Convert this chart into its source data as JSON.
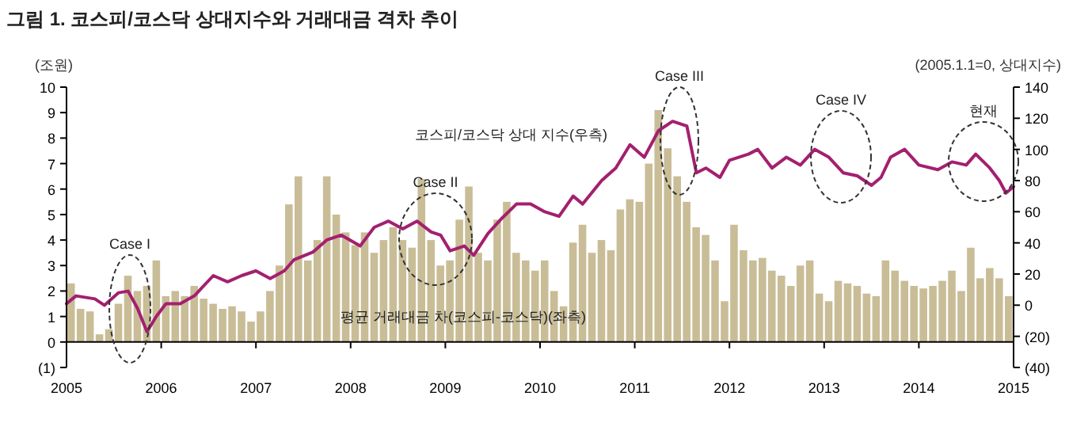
{
  "chart_data": {
    "type": "bar",
    "title": "그림 1. 코스피/코스닥 상대지수와 거래대금 격차 추이",
    "ylabel": "(조원)",
    "y2label": "(2005.1.1=0, 상대지수)",
    "xlim": [
      2005,
      2015
    ],
    "xticks": [
      2005,
      2006,
      2007,
      2008,
      2009,
      2010,
      2011,
      2012,
      2013,
      2014,
      2015
    ],
    "ylim": [
      -1,
      10
    ],
    "yticks": [
      {
        "value": -1,
        "label": "(1)"
      },
      0,
      1,
      2,
      3,
      4,
      5,
      6,
      7,
      8,
      9,
      10
    ],
    "y2lim": [
      -40,
      140
    ],
    "y2ticks": [
      {
        "value": -40,
        "label": "(40)"
      },
      {
        "value": -20,
        "label": "(20)"
      },
      0,
      20,
      40,
      60,
      80,
      100,
      120,
      140
    ],
    "series": [
      {
        "name": "평균 거래대금 차(코스피-코스닥)(좌측)",
        "color": "#c9bd97",
        "x": [
          2005.0,
          2005.1,
          2005.2,
          2005.3,
          2005.4,
          2005.5,
          2005.6,
          2005.7,
          2005.8,
          2005.9,
          2006.0,
          2006.1,
          2006.2,
          2006.3,
          2006.4,
          2006.5,
          2006.6,
          2006.7,
          2006.8,
          2006.9,
          2007.0,
          2007.1,
          2007.2,
          2007.3,
          2007.4,
          2007.5,
          2007.6,
          2007.7,
          2007.8,
          2007.9,
          2008.0,
          2008.1,
          2008.2,
          2008.3,
          2008.4,
          2008.5,
          2008.6,
          2008.7,
          2008.8,
          2008.9,
          2009.0,
          2009.1,
          2009.2,
          2009.3,
          2009.4,
          2009.5,
          2009.6,
          2009.7,
          2009.8,
          2009.9,
          2010.0,
          2010.1,
          2010.2,
          2010.3,
          2010.4,
          2010.5,
          2010.6,
          2010.7,
          2010.8,
          2010.9,
          2011.0,
          2011.1,
          2011.2,
          2011.3,
          2011.4,
          2011.5,
          2011.6,
          2011.7,
          2011.8,
          2011.9,
          2012.0,
          2012.1,
          2012.2,
          2012.3,
          2012.4,
          2012.5,
          2012.6,
          2012.7,
          2012.8,
          2012.9,
          2013.0,
          2013.1,
          2013.2,
          2013.3,
          2013.4,
          2013.5,
          2013.6,
          2013.7,
          2013.8,
          2013.9,
          2014.0,
          2014.1,
          2014.2,
          2014.3,
          2014.4,
          2014.5,
          2014.6,
          2014.7,
          2014.8,
          2014.9
        ],
        "values": [
          2.3,
          1.3,
          1.2,
          0.3,
          0.5,
          1.5,
          2.6,
          2.0,
          2.2,
          3.2,
          1.8,
          2.0,
          1.8,
          2.2,
          1.7,
          1.5,
          1.3,
          1.4,
          1.2,
          0.8,
          1.2,
          2.0,
          3.0,
          5.4,
          6.5,
          3.2,
          4.0,
          6.5,
          5.0,
          4.3,
          3.8,
          4.3,
          3.5,
          4.0,
          4.5,
          4.0,
          3.7,
          6.4,
          4.0,
          3.0,
          3.2,
          4.8,
          6.1,
          3.5,
          3.2,
          4.8,
          5.5,
          3.5,
          3.2,
          2.8,
          3.2,
          2.0,
          1.4,
          3.9,
          4.6,
          3.5,
          4.0,
          3.6,
          5.2,
          5.6,
          5.5,
          7.0,
          9.1,
          7.6,
          6.5,
          5.5,
          4.5,
          4.2,
          3.2,
          1.6,
          4.6,
          3.6,
          3.2,
          3.3,
          2.8,
          2.6,
          2.2,
          3.0,
          3.2,
          1.9,
          1.6,
          2.4,
          2.3,
          2.2,
          1.9,
          1.8,
          3.2,
          2.8,
          2.4,
          2.2,
          2.1,
          2.2,
          2.4,
          2.8,
          2.0,
          3.7,
          2.5,
          2.9,
          2.5,
          1.8
        ]
      },
      {
        "name": "코스피/코스닥 상대 지수(우측)",
        "type": "line",
        "axis": "y2",
        "color": "#a3206f",
        "x": [
          2005.0,
          2005.1,
          2005.3,
          2005.4,
          2005.55,
          2005.65,
          2005.75,
          2005.85,
          2005.95,
          2006.05,
          2006.2,
          2006.35,
          2006.55,
          2006.7,
          2006.85,
          2007.0,
          2007.15,
          2007.3,
          2007.4,
          2007.6,
          2007.75,
          2007.9,
          2008.1,
          2008.25,
          2008.4,
          2008.55,
          2008.7,
          2008.85,
          2008.95,
          2009.05,
          2009.2,
          2009.3,
          2009.45,
          2009.6,
          2009.75,
          2009.9,
          2010.05,
          2010.2,
          2010.35,
          2010.45,
          2010.65,
          2010.8,
          2010.95,
          2011.1,
          2011.25,
          2011.4,
          2011.55,
          2011.65,
          2011.75,
          2011.9,
          2012.0,
          2012.2,
          2012.3,
          2012.45,
          2012.6,
          2012.75,
          2012.9,
          2013.05,
          2013.2,
          2013.35,
          2013.5,
          2013.6,
          2013.7,
          2013.85,
          2014.0,
          2014.2,
          2014.35,
          2014.5,
          2014.6,
          2014.75,
          2014.85,
          2014.92,
          2015.0
        ],
        "values": [
          1,
          6,
          4,
          0,
          8,
          9,
          -2,
          -17,
          -7,
          1,
          1,
          6,
          19,
          15,
          19,
          22,
          17,
          22,
          29,
          34,
          42,
          45,
          38,
          50,
          54,
          49,
          54,
          47,
          45,
          35,
          38,
          32,
          46,
          56,
          65,
          65,
          60,
          57,
          70,
          65,
          80,
          88,
          103,
          95,
          112,
          118,
          115,
          85,
          88,
          82,
          93,
          97,
          100,
          88,
          95,
          90,
          100,
          95,
          85,
          83,
          77,
          82,
          95,
          100,
          90,
          87,
          92,
          90,
          97,
          88,
          80,
          72,
          76
        ]
      }
    ],
    "annotations": [
      "Case I",
      "Case II",
      "Case III",
      "Case IV",
      "현재"
    ]
  }
}
